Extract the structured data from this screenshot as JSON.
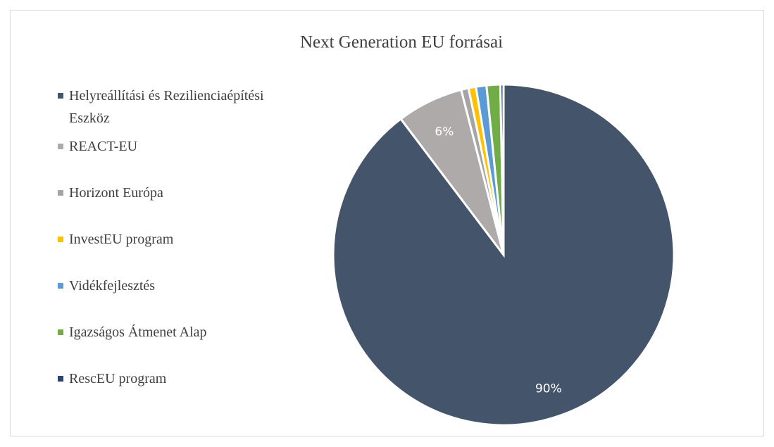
{
  "chart_data": {
    "type": "pie",
    "title": "Next Generation EU forrásai",
    "categories": [
      "Helyreállítási és Rezilienciaépítési Eszköz",
      "REACT-EU",
      "Horizont Európa",
      "InvestEU program",
      "Vidékfejlesztés",
      "Igazságos Átmenet Alap",
      "RescEU program"
    ],
    "values": [
      89.7,
      6.3,
      0.7,
      0.7,
      1.0,
      1.3,
      0.3
    ],
    "value_labels": [
      "90%",
      "6%",
      null,
      null,
      null,
      null,
      null
    ],
    "colors": [
      "#44546a",
      "#aeaaaa",
      "#a5a5a5",
      "#ffc000",
      "#5b9bd5",
      "#70ad47",
      "#264478"
    ],
    "legend": "left"
  }
}
